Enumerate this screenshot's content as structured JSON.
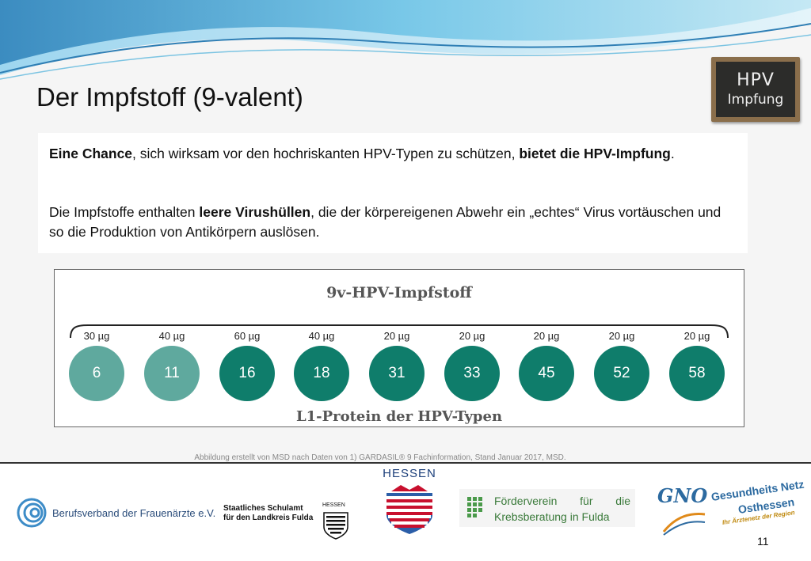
{
  "title": "Der Impfstoff (9-valent)",
  "logo": {
    "line1": "HPV",
    "line2": "Impfung"
  },
  "text": {
    "p1_b1": "Eine Chance",
    "p1_t1": ", sich wirksam vor den hochriskanten HPV-Typen zu schützen, ",
    "p1_b2": "bietet die HPV-Impfung",
    "p1_t2": ".",
    "p2_t1": "Die Impfstoffe enthalten ",
    "p2_b1": "leere Virushüllen",
    "p2_t2": ", die der körpereigenen Abwehr ein „echtes“ Virus vortäuschen und so die Produktion von Antikörpern auslösen."
  },
  "figure": {
    "title": "9v-HPV-Impfstoff",
    "subtitle": "L1-Protein der HPV-Typen",
    "types": [
      {
        "type": "6",
        "dose": "30 µg",
        "shade": "light"
      },
      {
        "type": "11",
        "dose": "40 µg",
        "shade": "light"
      },
      {
        "type": "16",
        "dose": "60 µg",
        "shade": "dark"
      },
      {
        "type": "18",
        "dose": "40 µg",
        "shade": "dark"
      },
      {
        "type": "31",
        "dose": "20 µg",
        "shade": "dark"
      },
      {
        "type": "33",
        "dose": "20 µg",
        "shade": "dark"
      },
      {
        "type": "45",
        "dose": "20 µg",
        "shade": "dark"
      },
      {
        "type": "52",
        "dose": "20 µg",
        "shade": "dark"
      },
      {
        "type": "58",
        "dose": "20 µg",
        "shade": "dark"
      }
    ]
  },
  "footnote": "Abbildung erstellt von MSD nach Daten von 1) GARDASIL® 9 Fachinformation, Stand Januar 2017, MSD.",
  "footer": {
    "bvf": "Berufsverband der Frauenärzte e.V.",
    "schulamt_line1": "Staatliches Schulamt",
    "schulamt_line2": "für den Landkreis Fulda",
    "schulamt_hessen": "HESSEN",
    "hessen": "HESSEN",
    "foerder_line1": "Förderverein für die",
    "foerder_line2": "Krebsberatung in Fulda",
    "gno": "GNO",
    "gno_line1": "Gesundheits Netz",
    "gno_line2": "Osthessen",
    "gno_line3": "Ihr Ärztenetz der Region"
  },
  "page_number": "11",
  "colors": {
    "light_teal": "#5fa99e",
    "dark_teal": "#0f7d6b"
  }
}
